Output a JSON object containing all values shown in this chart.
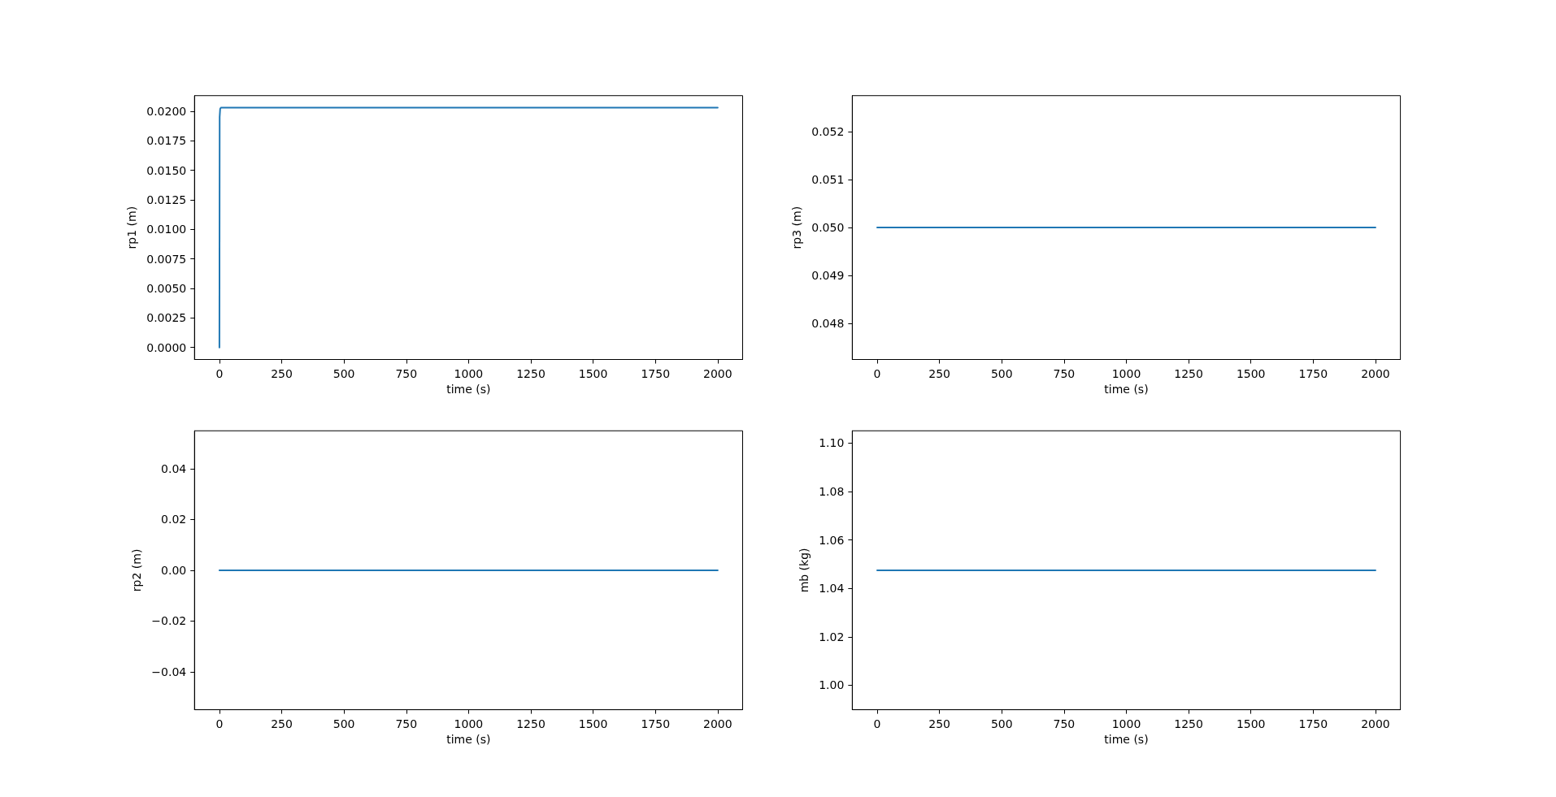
{
  "chart_data": [
    {
      "type": "line",
      "xlabel": "time (s)",
      "ylabel": "rp1 (m)",
      "x": [
        0,
        1,
        3,
        6,
        2000
      ],
      "values": [
        0,
        0.0195,
        0.0202,
        0.0203,
        0.0203
      ],
      "color": "#1f77b4",
      "xlim": [
        -100,
        2100
      ],
      "xticks": [
        0,
        250,
        500,
        750,
        1000,
        1250,
        1500,
        1750,
        2000
      ],
      "ylim": [
        -0.001015,
        0.021315
      ],
      "yticks": [
        {
          "value": 0,
          "label": "0.0000"
        },
        0.0025,
        {
          "value": 0.005,
          "label": "0.0050"
        },
        0.0075,
        {
          "value": 0.01,
          "label": "0.0100"
        },
        0.0125,
        {
          "value": 0.015,
          "label": "0.0150"
        },
        0.0175,
        {
          "value": 0.02,
          "label": "0.0200"
        }
      ]
    },
    {
      "type": "line",
      "xlabel": "time (s)",
      "ylabel": "rp3 (m)",
      "x": [
        0,
        2000
      ],
      "values": [
        0.05,
        0.05
      ],
      "color": "#1f77b4",
      "xlim": [
        -100,
        2100
      ],
      "xticks": [
        0,
        250,
        500,
        750,
        1000,
        1250,
        1500,
        1750,
        2000
      ],
      "ylim": [
        0.04725,
        0.05275
      ],
      "yticks": [
        0.048,
        0.049,
        {
          "value": 0.05,
          "label": "0.050"
        },
        0.051,
        0.052
      ]
    },
    {
      "type": "line",
      "xlabel": "time (s)",
      "ylabel": "rp2 (m)",
      "x": [
        0,
        2000
      ],
      "values": [
        0,
        0
      ],
      "color": "#1f77b4",
      "xlim": [
        -100,
        2100
      ],
      "xticks": [
        0,
        250,
        500,
        750,
        1000,
        1250,
        1500,
        1750,
        2000
      ],
      "ylim": [
        -0.055,
        0.055
      ],
      "yticks": [
        {
          "value": -0.04,
          "label": "−0.04"
        },
        {
          "value": -0.02,
          "label": "−0.02"
        },
        {
          "value": 0,
          "label": "0.00"
        },
        0.02,
        0.04
      ]
    },
    {
      "type": "line",
      "xlabel": "time (s)",
      "ylabel": "mb (kg)",
      "x": [
        0,
        2000
      ],
      "values": [
        1.0475,
        1.0475
      ],
      "color": "#1f77b4",
      "xlim": [
        -100,
        2100
      ],
      "xticks": [
        0,
        250,
        500,
        750,
        1000,
        1250,
        1500,
        1750,
        2000
      ],
      "ylim": [
        0.98989,
        1.10511
      ],
      "yticks": [
        {
          "value": 1,
          "label": "1.00"
        },
        1.02,
        1.04,
        1.06,
        1.08,
        {
          "value": 1.1,
          "label": "1.10"
        }
      ]
    }
  ]
}
